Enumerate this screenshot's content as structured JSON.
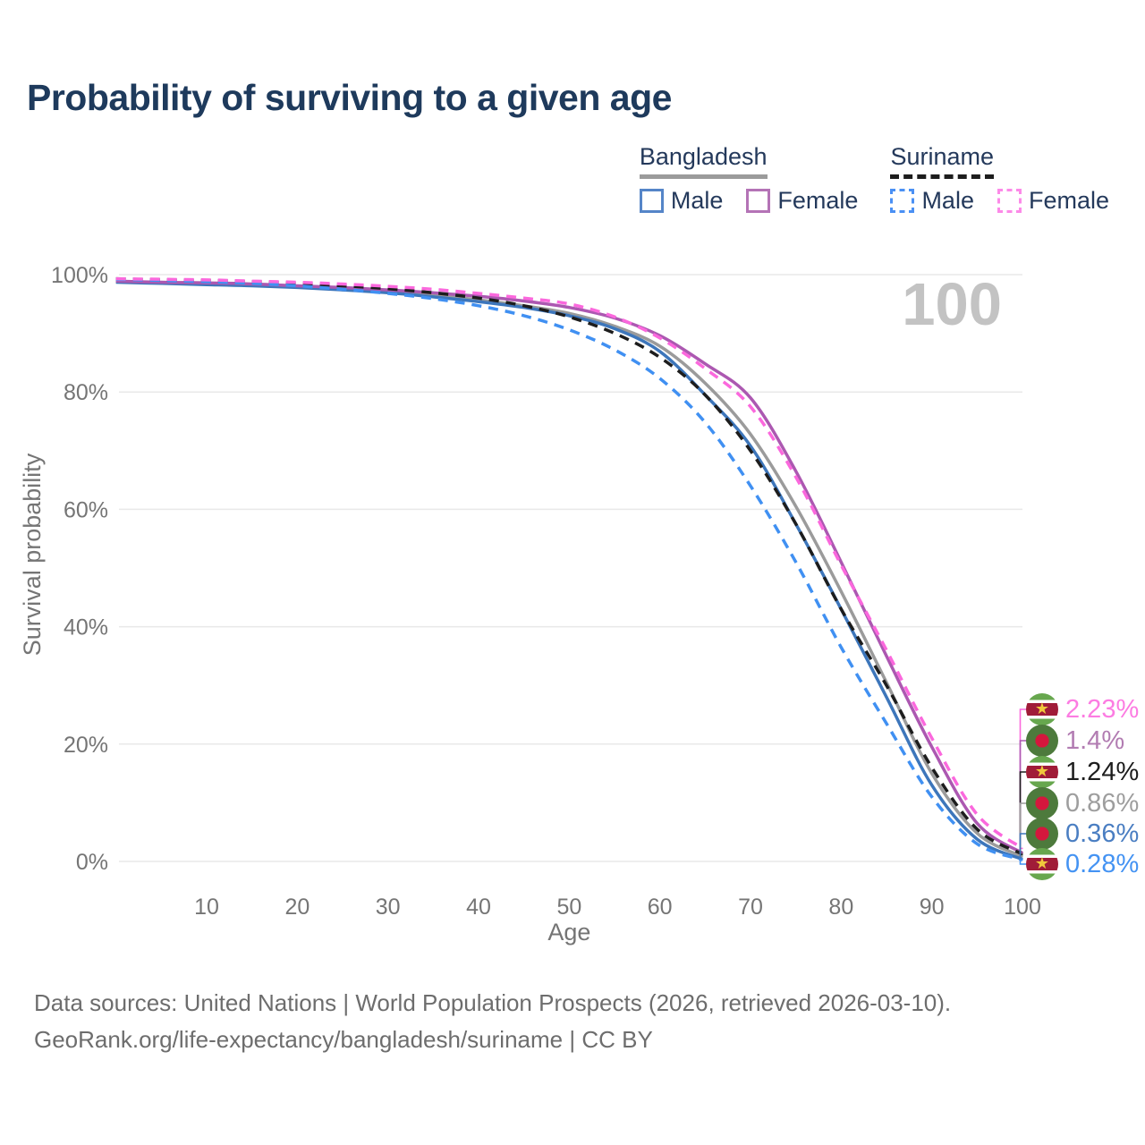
{
  "title": "Probability of surviving to a given age",
  "legend": {
    "groups": [
      {
        "country": "Bangladesh",
        "line_style": "solid",
        "underline_color": "#9b9b9b",
        "items": [
          {
            "label": "Male",
            "swatch_color": "#5585c8"
          },
          {
            "label": "Female",
            "swatch_color": "#b473b6"
          }
        ]
      },
      {
        "country": "Suriname",
        "line_style": "dashed",
        "underline_color": "#1d1d1d",
        "items": [
          {
            "label": "Male",
            "swatch_color": "#4a90f4"
          },
          {
            "label": "Female",
            "swatch_color": "#fc8ae8"
          }
        ]
      }
    ]
  },
  "flags": {
    "suriname": {
      "green": "#67a74e",
      "white": "#ffffff",
      "red": "#a01c38",
      "star": "#f0c83c"
    },
    "bangladesh": {
      "green": "#4d7a3c",
      "red": "#d4173d"
    }
  },
  "chart_data": {
    "type": "line",
    "title": "Probability of surviving to a given age",
    "xlabel": "Age",
    "ylabel": "Survival probability",
    "xlim": [
      0,
      100
    ],
    "ylim": [
      0,
      100
    ],
    "grid": "horizontal",
    "age_counter": "100",
    "x_ticks": [
      {
        "value": 10,
        "label": "10"
      },
      {
        "value": 20,
        "label": "20"
      },
      {
        "value": 30,
        "label": "30"
      },
      {
        "value": 40,
        "label": "40"
      },
      {
        "value": 50,
        "label": "50"
      },
      {
        "value": 60,
        "label": "60"
      },
      {
        "value": 70,
        "label": "70"
      },
      {
        "value": 80,
        "label": "80"
      },
      {
        "value": 90,
        "label": "90"
      },
      {
        "value": 100,
        "label": "100"
      }
    ],
    "y_ticks": [
      {
        "value": 0,
        "label": "0%"
      },
      {
        "value": 20,
        "label": "20%"
      },
      {
        "value": 40,
        "label": "40%"
      },
      {
        "value": 60,
        "label": "60%"
      },
      {
        "value": 80,
        "label": "80%"
      },
      {
        "value": 100,
        "label": "100%"
      }
    ],
    "x": [
      0,
      5,
      10,
      15,
      20,
      25,
      30,
      35,
      40,
      45,
      50,
      55,
      60,
      65,
      70,
      75,
      80,
      85,
      90,
      95,
      100
    ],
    "series": [
      {
        "name": "Bangladesh (both sexes)",
        "country": "Bangladesh",
        "sex": "Both",
        "color": "#9b9b9b",
        "dashed": false,
        "end_value_label": "0.86%",
        "values": [
          98.8,
          98.6,
          98.4,
          98.2,
          97.9,
          97.6,
          97.1,
          96.5,
          95.7,
          94.7,
          93.4,
          91.2,
          87.8,
          81.5,
          72.8,
          60.5,
          46.0,
          30.5,
          15.0,
          4.8,
          0.86
        ]
      },
      {
        "name": "Bangladesh Male",
        "country": "Bangladesh",
        "sex": "Male",
        "color": "#3d76bb",
        "dashed": false,
        "end_value_label": "0.36%",
        "values": [
          98.7,
          98.5,
          98.3,
          98.1,
          97.8,
          97.4,
          96.9,
          96.2,
          95.4,
          94.4,
          93.0,
          90.8,
          86.9,
          79.5,
          70.8,
          57.5,
          43.0,
          28.0,
          13.0,
          3.8,
          0.36
        ]
      },
      {
        "name": "Bangladesh Female",
        "country": "Bangladesh",
        "sex": "Female",
        "color": "#ac58b1",
        "dashed": false,
        "end_value_label": "1.4%",
        "values": [
          98.9,
          98.7,
          98.6,
          98.4,
          98.1,
          97.8,
          97.4,
          96.9,
          96.3,
          95.5,
          94.4,
          92.6,
          89.6,
          84.8,
          79.0,
          66.5,
          51.0,
          35.0,
          19.5,
          6.5,
          1.4
        ]
      },
      {
        "name": "Suriname (both sexes)",
        "country": "Suriname",
        "sex": "Both",
        "color": "#1d1d1d",
        "dashed": true,
        "end_value_label": "1.24%",
        "values": [
          99.3,
          99.1,
          99.0,
          98.8,
          98.5,
          98.1,
          97.6,
          96.9,
          96.0,
          94.7,
          92.8,
          90.0,
          85.9,
          79.5,
          70.0,
          57.5,
          43.0,
          30.0,
          16.0,
          5.5,
          1.24
        ]
      },
      {
        "name": "Suriname Male",
        "country": "Suriname",
        "sex": "Male",
        "color": "#4090f2",
        "dashed": true,
        "end_value_label": "0.28%",
        "values": [
          99.2,
          99.0,
          98.8,
          98.5,
          98.1,
          97.5,
          96.8,
          95.9,
          94.7,
          93.0,
          90.6,
          87.2,
          82.3,
          74.8,
          64.0,
          51.0,
          36.5,
          23.5,
          11.0,
          3.0,
          0.28
        ]
      },
      {
        "name": "Suriname Female",
        "country": "Suriname",
        "sex": "Female",
        "color": "#fb68dd",
        "dashed": true,
        "end_value_label": "2.23%",
        "values": [
          99.3,
          99.2,
          99.1,
          98.9,
          98.7,
          98.4,
          98.0,
          97.5,
          96.8,
          96.0,
          95.0,
          92.8,
          89.2,
          84.0,
          77.5,
          65.5,
          50.5,
          36.0,
          21.0,
          8.0,
          2.23
        ]
      }
    ],
    "end_labels": [
      {
        "value": "2.23%",
        "series": 5,
        "color": "#fc7ce2",
        "flag": "suriname"
      },
      {
        "value": "1.4%",
        "series": 2,
        "color": "#b27cb2",
        "flag": "bangladesh"
      },
      {
        "value": "1.24%",
        "series": 3,
        "color": "#1d1d1d",
        "flag": "suriname"
      },
      {
        "value": "0.86%",
        "series": 0,
        "color": "#9e9e9e",
        "flag": "bangladesh"
      },
      {
        "value": "0.36%",
        "series": 1,
        "color": "#4a7ec2",
        "flag": "bangladesh"
      },
      {
        "value": "0.28%",
        "series": 4,
        "color": "#4493f3",
        "flag": "suriname"
      }
    ]
  },
  "footer": {
    "line1": "Data sources: United Nations | World Population Prospects (2026, retrieved 2026-03-10).",
    "line2": "GeoRank.org/life-expectancy/bangladesh/suriname | CC BY"
  }
}
